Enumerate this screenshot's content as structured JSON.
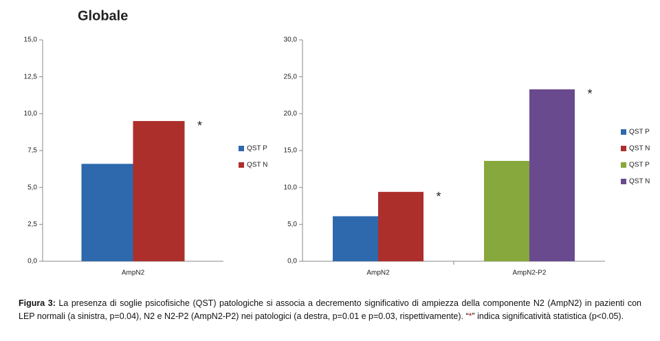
{
  "chart_data": [
    {
      "type": "bar",
      "title": "Globale",
      "categories": [
        "AmpN2"
      ],
      "series": [
        {
          "name": "QST P",
          "color": "#2e68ad",
          "values": [
            6.6
          ]
        },
        {
          "name": "QST N",
          "color": "#ac2f2c",
          "values": [
            9.5
          ]
        }
      ],
      "annotations": [
        "*"
      ],
      "ylim": [
        0,
        15
      ],
      "yticks": [
        {
          "value": 0,
          "label": "0,0"
        },
        {
          "value": 2.5,
          "label": "2,5"
        },
        {
          "value": 5,
          "label": "5,0"
        },
        {
          "value": 7.5,
          "label": "7,5"
        },
        {
          "value": 10,
          "label": "10,0"
        },
        {
          "value": 12.5,
          "label": "12,5"
        },
        {
          "value": 15,
          "label": "15,0"
        }
      ],
      "legend": "right"
    },
    {
      "type": "bar",
      "categories": [
        "AmpN2",
        "AmpN2-P2"
      ],
      "series": [
        {
          "name": "QST P",
          "color": "#2e68ad",
          "values": [
            6.1,
            null
          ]
        },
        {
          "name": "QST N",
          "color": "#ac2f2c",
          "values": [
            9.4,
            null
          ]
        },
        {
          "name": "QST P",
          "color": "#86a83c",
          "values": [
            null,
            13.6
          ]
        },
        {
          "name": "QST N",
          "color": "#6a4a8f",
          "values": [
            null,
            23.3
          ]
        }
      ],
      "annotations": [
        "*",
        "*"
      ],
      "ylim": [
        0,
        30
      ],
      "yticks": [
        {
          "value": 0,
          "label": "0,0"
        },
        {
          "value": 5,
          "label": "5,0"
        },
        {
          "value": 10,
          "label": "10,0"
        },
        {
          "value": 15,
          "label": "15,0"
        },
        {
          "value": 20,
          "label": "20,0"
        },
        {
          "value": 25,
          "label": "25,0"
        },
        {
          "value": 30,
          "label": "30,0"
        }
      ],
      "legend": "right"
    }
  ],
  "caption": [
    "Figura 3:",
    " La presenza di soglie psicofisiche (QST) patologiche si associa a decremento significativo di ampiezza della componente N2 (AmpN2) in pazienti con LEP normali (a sinistra, p=0.04), N2 e N2-P2  (AmpN2-P2) nei patologici (a destra, p=0.01 e p=0.03, rispettivamente). “",
    "*",
    "” indica significatività statistica (p<0.05)."
  ]
}
